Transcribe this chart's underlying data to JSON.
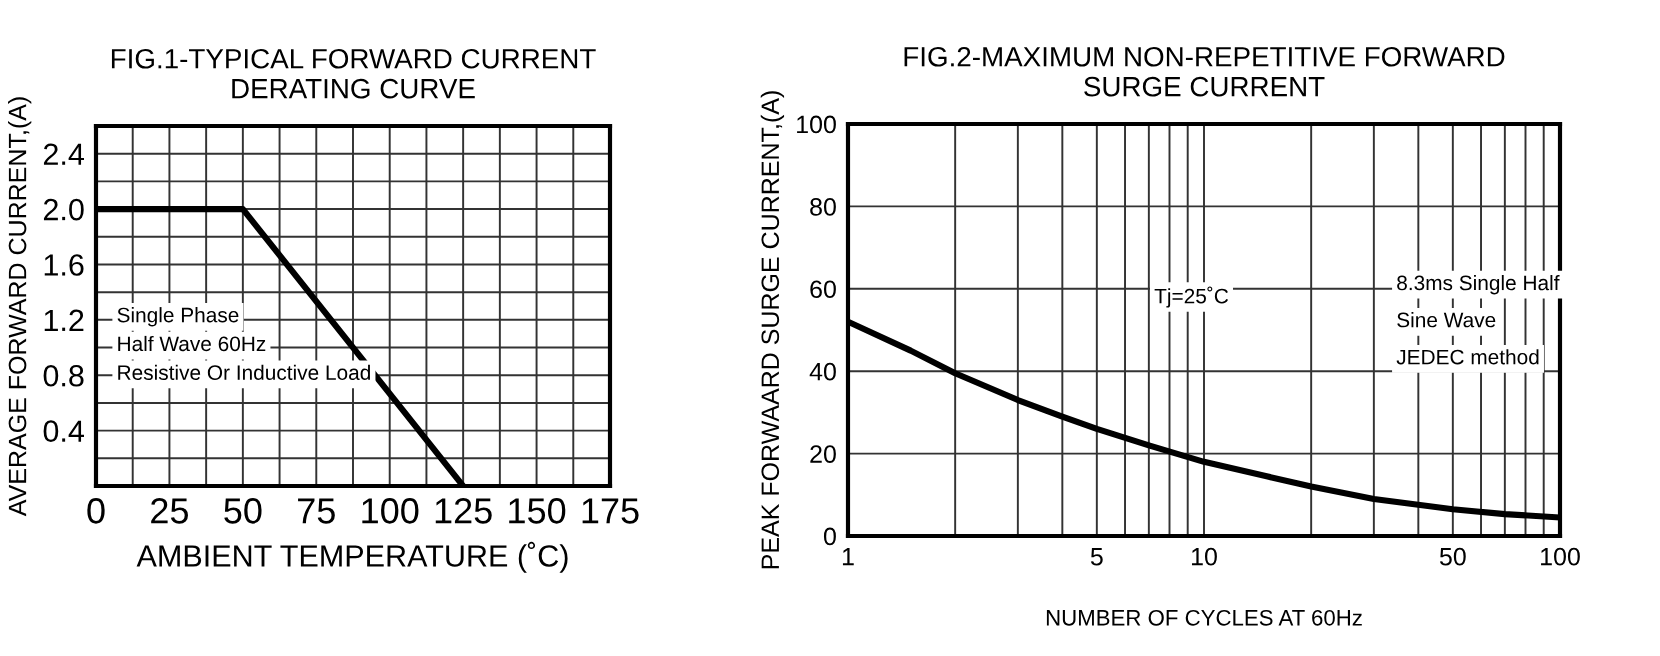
{
  "chart_data": [
    {
      "type": "line",
      "title": "FIG.1-TYPICAL FORWARD CURRENT\nDERATING CURVE",
      "xlabel": "AMBIENT TEMPERATURE (˚C)",
      "ylabel": "AVERAGE FORWARD CURRENT,(A)",
      "x": [
        0,
        50,
        125
      ],
      "series": [
        {
          "color": "#000000",
          "values": [
            2.0,
            2.0,
            0
          ]
        }
      ],
      "xlim": [
        0,
        175
      ],
      "ylim": [
        0,
        2.6
      ],
      "xticks": [
        0,
        {
          "value": 12.5,
          "label": null
        },
        25,
        {
          "value": 37.5,
          "label": null
        },
        50,
        {
          "value": 62.5,
          "label": null
        },
        75,
        {
          "value": 87.5,
          "label": null
        },
        100,
        {
          "value": 112.5,
          "label": null
        },
        125,
        {
          "value": 137.5,
          "label": null
        },
        150,
        {
          "value": 162.5,
          "label": null
        },
        175
      ],
      "yticks": [
        {
          "value": 0.2,
          "label": null
        },
        0.4,
        {
          "value": 0.6,
          "label": null
        },
        0.8,
        {
          "value": 1.0,
          "label": null
        },
        1.2,
        {
          "value": 1.4,
          "label": null
        },
        1.6,
        {
          "value": 1.8,
          "label": null
        },
        {
          "value": 2,
          "label": "2.0"
        },
        {
          "value": 2.2,
          "label": null
        },
        2.4
      ],
      "grid": true,
      "marker": "none",
      "line_style": "solid",
      "annotations": [
        "Single Phase",
        "Half Wave 60Hz",
        "Resistive Or Inductive Load"
      ]
    },
    {
      "type": "line",
      "title": "FIG.2-MAXIMUM NON-REPETITIVE FORWARD\nSURGE CURRENT",
      "xlabel": "NUMBER OF CYCLES AT 60Hz",
      "ylabel": "PEAK FORWAARD SURGE CURRENT,(A)",
      "x": [
        1,
        1.5,
        2,
        3,
        4,
        5,
        7,
        10,
        15,
        20,
        30,
        50,
        70,
        100
      ],
      "series": [
        {
          "color": "#000000",
          "values": [
            52,
            45,
            39.5,
            33,
            29,
            26,
            22,
            18,
            14.5,
            12,
            9,
            6.5,
            5.3,
            4.5
          ]
        }
      ],
      "log": "x",
      "xlim": [
        1,
        100
      ],
      "ylim": [
        0,
        100
      ],
      "xticks": [
        1,
        {
          "value": 2,
          "label": null
        },
        {
          "value": 3,
          "label": null
        },
        {
          "value": 4,
          "label": null
        },
        5,
        {
          "value": 6,
          "label": null
        },
        {
          "value": 7,
          "label": null
        },
        {
          "value": 8,
          "label": null
        },
        {
          "value": 9,
          "label": null
        },
        10,
        {
          "value": 20,
          "label": null
        },
        {
          "value": 30,
          "label": null
        },
        {
          "value": 40,
          "label": null
        },
        50,
        {
          "value": 60,
          "label": null
        },
        {
          "value": 70,
          "label": null
        },
        {
          "value": 80,
          "label": null
        },
        {
          "value": 90,
          "label": null
        },
        100
      ],
      "yticks": [
        0,
        20,
        40,
        60,
        80,
        100
      ],
      "grid": true,
      "marker": "none",
      "line_style": "solid",
      "annotations": [
        "Tj=25˚C",
        "8.3ms Single Half",
        "Sine Wave",
        "JEDEC method"
      ]
    }
  ]
}
